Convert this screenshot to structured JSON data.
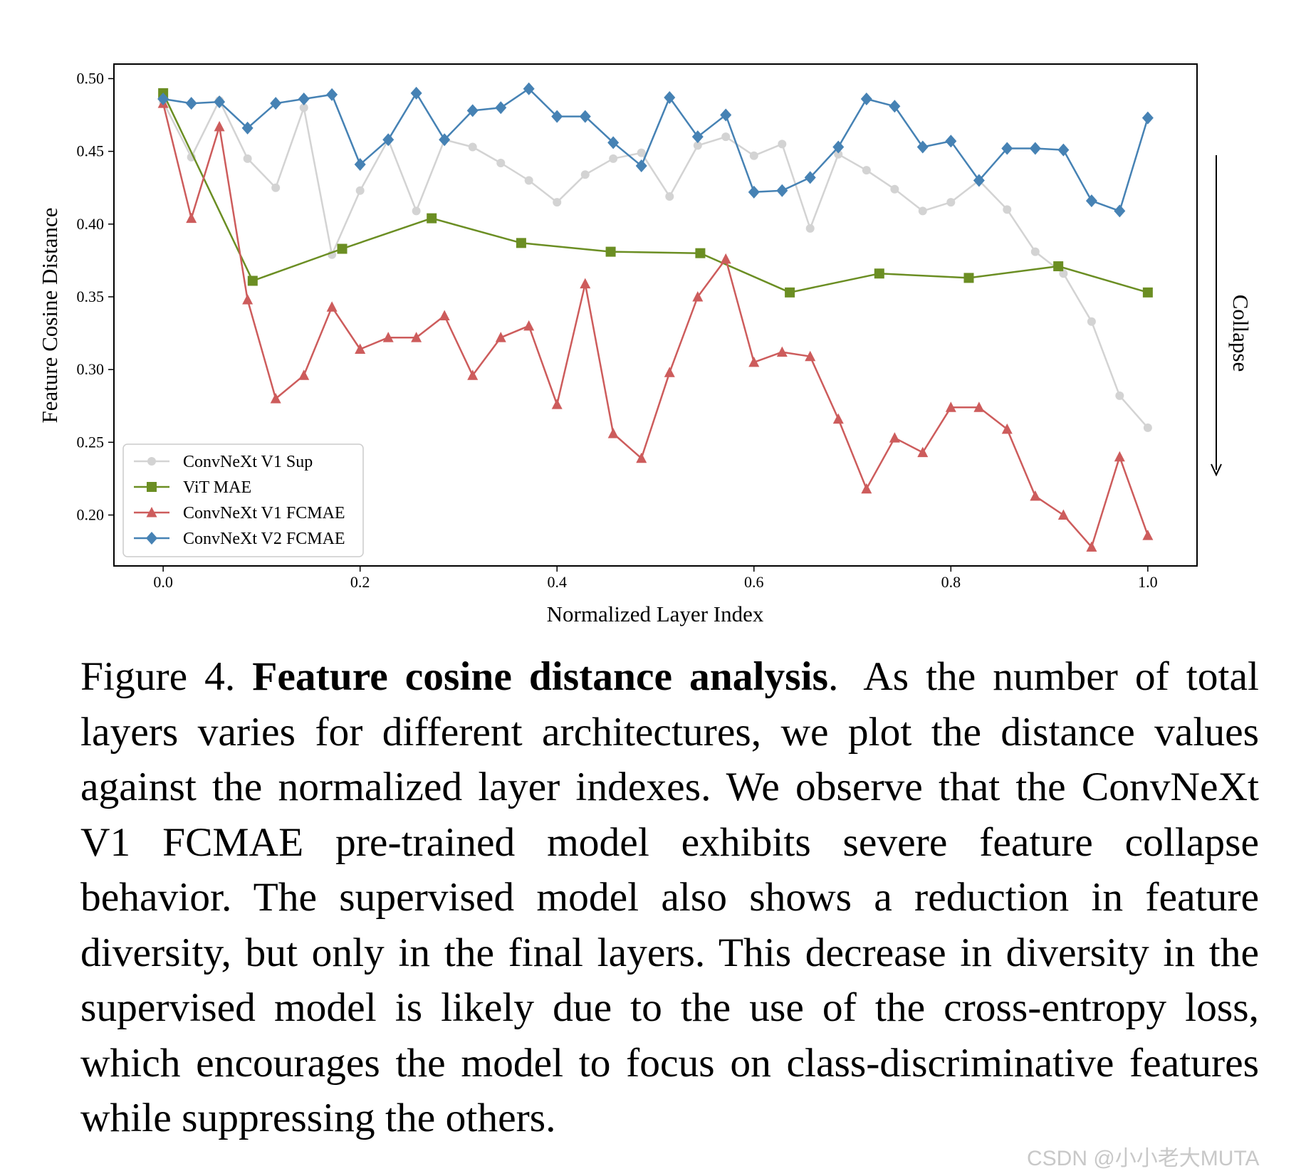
{
  "chart_data": {
    "type": "line",
    "xlabel": "Normalized Layer Index",
    "ylabel": "Feature Cosine Distance",
    "xlim": [
      -0.05,
      1.05
    ],
    "ylim": [
      0.165,
      0.51
    ],
    "xticks": [
      "0.0",
      "0.2",
      "0.4",
      "0.6",
      "0.8",
      "1.0"
    ],
    "yticks": [
      "0.20",
      "0.25",
      "0.30",
      "0.35",
      "0.40",
      "0.45",
      "0.50"
    ],
    "grid": false,
    "legend_position": "lower-left",
    "annotation": "Collapse",
    "series": [
      {
        "name": "ConvNeXt V1 Sup",
        "color": "#d3d3d3",
        "marker": "circle",
        "x": [
          0.0,
          0.0286,
          0.0571,
          0.0857,
          0.1143,
          0.1429,
          0.1714,
          0.2,
          0.2286,
          0.2571,
          0.2857,
          0.3143,
          0.3429,
          0.3714,
          0.4,
          0.4286,
          0.4571,
          0.4857,
          0.5143,
          0.5429,
          0.5714,
          0.6,
          0.6286,
          0.6571,
          0.6857,
          0.7143,
          0.7429,
          0.7714,
          0.8,
          0.8286,
          0.8571,
          0.8857,
          0.9143,
          0.9429,
          0.9714,
          1.0
        ],
        "y": [
          0.484,
          0.446,
          0.485,
          0.445,
          0.425,
          0.48,
          0.379,
          0.423,
          0.458,
          0.409,
          0.458,
          0.453,
          0.442,
          0.43,
          0.415,
          0.434,
          0.445,
          0.449,
          0.419,
          0.454,
          0.46,
          0.447,
          0.455,
          0.397,
          0.448,
          0.437,
          0.424,
          0.409,
          0.415,
          0.43,
          0.41,
          0.381,
          0.366,
          0.333,
          0.282,
          0.26
        ]
      },
      {
        "name": "ViT MAE",
        "color": "#6b8e23",
        "marker": "square",
        "x": [
          0.0,
          0.0909,
          0.1818,
          0.2727,
          0.3636,
          0.4545,
          0.5455,
          0.6364,
          0.7273,
          0.8182,
          0.9091,
          1.0
        ],
        "y": [
          0.49,
          0.361,
          0.383,
          0.404,
          0.387,
          0.381,
          0.38,
          0.353,
          0.366,
          0.363,
          0.371,
          0.353
        ]
      },
      {
        "name": "ConvNeXt V1 FCMAE",
        "color": "#cd5c5c",
        "marker": "triangle",
        "x": [
          0.0,
          0.0286,
          0.0571,
          0.0857,
          0.1143,
          0.1429,
          0.1714,
          0.2,
          0.2286,
          0.2571,
          0.2857,
          0.3143,
          0.3429,
          0.3714,
          0.4,
          0.4286,
          0.4571,
          0.4857,
          0.5143,
          0.5429,
          0.5714,
          0.6,
          0.6286,
          0.6571,
          0.6857,
          0.7143,
          0.7429,
          0.7714,
          0.8,
          0.8286,
          0.8571,
          0.8857,
          0.9143,
          0.9429,
          0.9714,
          1.0
        ],
        "y": [
          0.483,
          0.404,
          0.467,
          0.348,
          0.28,
          0.296,
          0.343,
          0.314,
          0.322,
          0.322,
          0.337,
          0.296,
          0.322,
          0.33,
          0.276,
          0.359,
          0.256,
          0.239,
          0.298,
          0.35,
          0.376,
          0.305,
          0.312,
          0.309,
          0.266,
          0.218,
          0.253,
          0.243,
          0.274,
          0.274,
          0.259,
          0.213,
          0.2,
          0.178,
          0.24,
          0.186
        ]
      },
      {
        "name": "ConvNeXt V2 FCMAE",
        "color": "#4682b4",
        "marker": "diamond",
        "x": [
          0.0,
          0.0286,
          0.0571,
          0.0857,
          0.1143,
          0.1429,
          0.1714,
          0.2,
          0.2286,
          0.2571,
          0.2857,
          0.3143,
          0.3429,
          0.3714,
          0.4,
          0.4286,
          0.4571,
          0.4857,
          0.5143,
          0.5429,
          0.5714,
          0.6,
          0.6286,
          0.6571,
          0.6857,
          0.7143,
          0.7429,
          0.7714,
          0.8,
          0.8286,
          0.8571,
          0.8857,
          0.9143,
          0.9429,
          0.9714,
          1.0
        ],
        "y": [
          0.486,
          0.483,
          0.484,
          0.466,
          0.483,
          0.486,
          0.489,
          0.441,
          0.458,
          0.49,
          0.458,
          0.478,
          0.48,
          0.493,
          0.474,
          0.474,
          0.456,
          0.44,
          0.487,
          0.46,
          0.475,
          0.422,
          0.423,
          0.432,
          0.453,
          0.486,
          0.481,
          0.453,
          0.457,
          0.43,
          0.452,
          0.452,
          0.451,
          0.416,
          0.409,
          0.473
        ]
      }
    ]
  },
  "caption": {
    "figure_label": "Figure 4.",
    "title": "Feature cosine distance analysis",
    "title_end": ".",
    "body": "As the number of total layers varies for different architectures, we plot the distance values against the normalized layer indexes. We observe that the ConvNeXt V1 FCMAE pre-trained model exhibits severe feature collapse behavior. The supervised model also shows a reduction in feature diversity, but only in the final layers. This decrease in diversity in the supervised model is likely due to the use of the cross-entropy loss, which encourages the model to focus on class-discriminative features while suppressing the others."
  },
  "watermark": "CSDN @小小老大MUTA"
}
